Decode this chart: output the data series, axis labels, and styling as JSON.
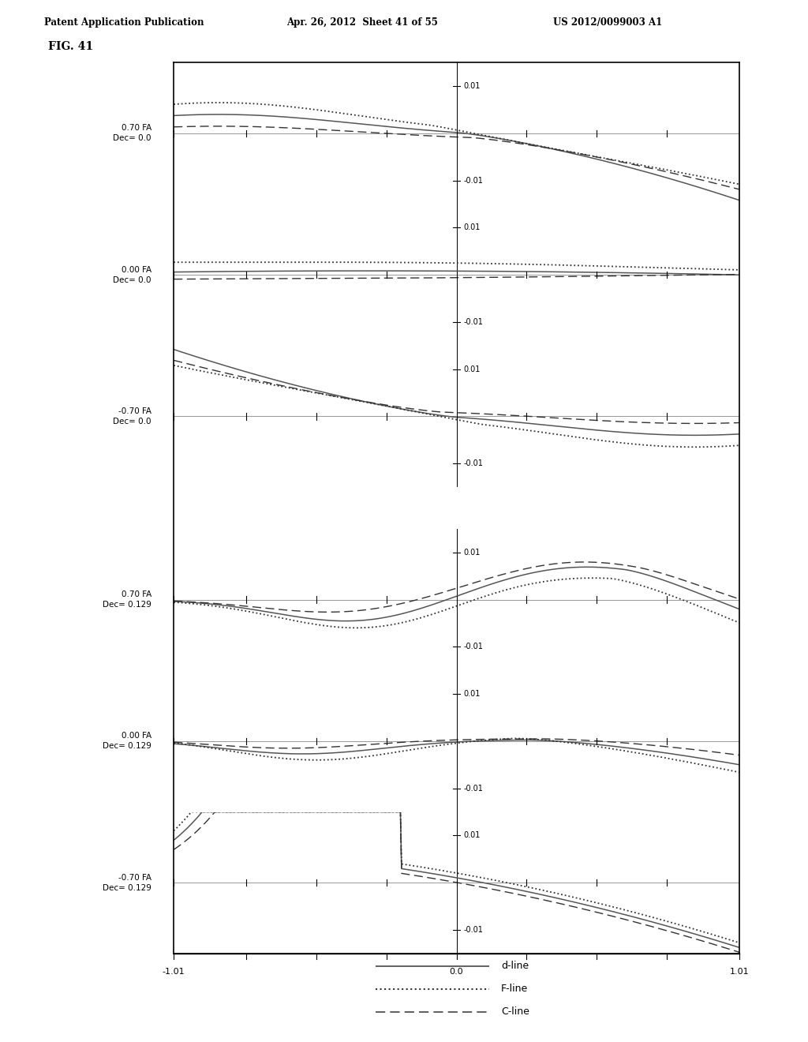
{
  "header_left": "Patent Application Publication",
  "header_center": "Apr. 26, 2012  Sheet 41 of 55",
  "header_right": "US 2012/0099003 A1",
  "figure_label": "FIG. 41",
  "subplots": [
    {
      "label": "0.70 FA\nDec= 0.0",
      "fa": 0.7,
      "dec": 0.0
    },
    {
      "label": "0.00 FA\nDec= 0.0",
      "fa": 0.0,
      "dec": 0.0
    },
    {
      "label": "-0.70 FA\nDec= 0.0",
      "fa": -0.7,
      "dec": 0.0
    },
    {
      "label": "0.70 FA\nDec= 0.129",
      "fa": 0.7,
      "dec": 0.129
    },
    {
      "label": "0.00 FA\nDec= 0.129",
      "fa": 0.0,
      "dec": 0.129
    },
    {
      "label": "-0.70 FA\nDec= 0.129",
      "fa": -0.7,
      "dec": 0.129
    }
  ],
  "x_range": [
    -1.01,
    1.01
  ],
  "y_range": [
    -0.015,
    0.015
  ],
  "background_color": "#ffffff",
  "box_color": "#000000",
  "line_color_d": "#555555",
  "line_color_f": "#333333",
  "line_color_c": "#333333",
  "x_ticks": [
    -1.01,
    -0.75,
    -0.5,
    -0.25,
    0.0,
    0.25,
    0.5,
    0.75,
    1.01
  ],
  "legend_labels": [
    "d-line",
    "F-line",
    "C-line"
  ]
}
